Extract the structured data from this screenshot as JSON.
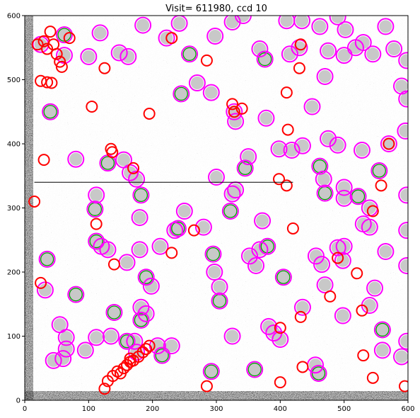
{
  "chart_data": {
    "type": "scatter",
    "title": "Visit= 611980, ccd 10",
    "xlabel": "",
    "ylabel": "",
    "xlim": [
      0,
      600
    ],
    "ylim": [
      0,
      600
    ],
    "x_ticks": [
      "0",
      "100",
      "200",
      "300",
      "400",
      "500",
      "600"
    ],
    "y_ticks": [
      "0",
      "100",
      "200",
      "300",
      "400",
      "500",
      "600"
    ],
    "grid": false,
    "background_image": "noisy grayscale CCD frame with dark edge bands",
    "colors": {
      "magenta": "#ff00ff",
      "green": "#00a000",
      "red": "#ff0000",
      "star_fill": "#c8c8c8"
    },
    "series": [
      {
        "color": "#ff00ff",
        "marker": "open circle",
        "points": [
          [
            25,
            555
          ],
          [
            62,
            570
          ],
          [
            62,
            538
          ],
          [
            100,
            536
          ],
          [
            118,
            573
          ],
          [
            148,
            542
          ],
          [
            162,
            536
          ],
          [
            185,
            585
          ],
          [
            222,
            565
          ],
          [
            242,
            588
          ],
          [
            258,
            540
          ],
          [
            270,
            495
          ],
          [
            245,
            478
          ],
          [
            292,
            480
          ],
          [
            298,
            568
          ],
          [
            325,
            590
          ],
          [
            342,
            600
          ],
          [
            368,
            548
          ],
          [
            376,
            532
          ],
          [
            410,
            592
          ],
          [
            434,
            592
          ],
          [
            415,
            540
          ],
          [
            430,
            550
          ],
          [
            462,
            583
          ],
          [
            475,
            545
          ],
          [
            470,
            505
          ],
          [
            490,
            598
          ],
          [
            502,
            578
          ],
          [
            500,
            538
          ],
          [
            518,
            550
          ],
          [
            530,
            558
          ],
          [
            545,
            540
          ],
          [
            565,
            583
          ],
          [
            578,
            548
          ],
          [
            598,
            530
          ],
          [
            590,
            490
          ],
          [
            598,
            470
          ],
          [
            596,
            420
          ],
          [
            570,
            400
          ],
          [
            528,
            390
          ],
          [
            450,
            458
          ],
          [
            475,
            408
          ],
          [
            490,
            398
          ],
          [
            435,
            397
          ],
          [
            398,
            392
          ],
          [
            418,
            390
          ],
          [
            378,
            440
          ],
          [
            328,
            450
          ],
          [
            330,
            435
          ],
          [
            350,
            380
          ],
          [
            345,
            362
          ],
          [
            300,
            348
          ],
          [
            325,
            322
          ],
          [
            330,
            328
          ],
          [
            322,
            295
          ],
          [
            372,
            280
          ],
          [
            250,
            295
          ],
          [
            240,
            268
          ],
          [
            280,
            270
          ],
          [
            180,
            285
          ],
          [
            155,
            375
          ],
          [
            165,
            355
          ],
          [
            175,
            345
          ],
          [
            182,
            320
          ],
          [
            130,
            370
          ],
          [
            112,
            320
          ],
          [
            110,
            298
          ],
          [
            80,
            376
          ],
          [
            40,
            450
          ],
          [
            180,
            235
          ],
          [
            160,
            215
          ],
          [
            120,
            240
          ],
          [
            112,
            248
          ],
          [
            130,
            235
          ],
          [
            35,
            220
          ],
          [
            32,
            172
          ],
          [
            80,
            165
          ],
          [
            140,
            137
          ],
          [
            190,
            192
          ],
          [
            198,
            178
          ],
          [
            212,
            240
          ],
          [
            235,
            265
          ],
          [
            295,
            228
          ],
          [
            297,
            200
          ],
          [
            305,
            177
          ],
          [
            305,
            155
          ],
          [
            352,
            225
          ],
          [
            362,
            210
          ],
          [
            368,
            235
          ],
          [
            380,
            240
          ],
          [
            405,
            192
          ],
          [
            456,
            225
          ],
          [
            465,
            212
          ],
          [
            470,
            180
          ],
          [
            490,
            238
          ],
          [
            500,
            240
          ],
          [
            498,
            218
          ],
          [
            530,
            275
          ],
          [
            540,
            270
          ],
          [
            540,
            300
          ],
          [
            522,
            318
          ],
          [
            500,
            332
          ],
          [
            500,
            315
          ],
          [
            462,
            365
          ],
          [
            468,
            345
          ],
          [
            470,
            323
          ],
          [
            555,
            358
          ],
          [
            565,
            232
          ],
          [
            548,
            175
          ],
          [
            540,
            148
          ],
          [
            498,
            132
          ],
          [
            560,
            110
          ],
          [
            560,
            78
          ],
          [
            598,
            210
          ],
          [
            598,
            265
          ],
          [
            598,
            320
          ],
          [
            598,
            92
          ],
          [
            590,
            68
          ],
          [
            435,
            145
          ],
          [
            455,
            55
          ],
          [
            460,
            42
          ],
          [
            382,
            115
          ],
          [
            390,
            105
          ],
          [
            400,
            95
          ],
          [
            360,
            48
          ],
          [
            325,
            100
          ],
          [
            292,
            45
          ],
          [
            230,
            85
          ],
          [
            208,
            85
          ],
          [
            215,
            70
          ],
          [
            175,
            75
          ],
          [
            160,
            92
          ],
          [
            172,
            92
          ],
          [
            182,
            145
          ],
          [
            190,
            135
          ],
          [
            182,
            125
          ],
          [
            135,
            100
          ],
          [
            112,
            98
          ],
          [
            95,
            78
          ],
          [
            65,
            80
          ],
          [
            55,
            118
          ],
          [
            65,
            98
          ],
          [
            60,
            65
          ],
          [
            45,
            62
          ]
        ]
      },
      {
        "color": "#00a000",
        "marker": "open circle (slightly smaller)",
        "points": [
          [
            40,
            450
          ],
          [
            130,
            370
          ],
          [
            110,
            298
          ],
          [
            35,
            220
          ],
          [
            112,
            248
          ],
          [
            182,
            320
          ],
          [
            240,
            268
          ],
          [
            322,
            295
          ],
          [
            345,
            362
          ],
          [
            376,
            532
          ],
          [
            462,
            365
          ],
          [
            405,
            192
          ],
          [
            305,
            155
          ],
          [
            360,
            48
          ],
          [
            460,
            42
          ],
          [
            292,
            45
          ],
          [
            215,
            70
          ],
          [
            182,
            125
          ],
          [
            160,
            92
          ],
          [
            62,
            570
          ],
          [
            258,
            540
          ],
          [
            470,
            323
          ],
          [
            555,
            358
          ],
          [
            522,
            318
          ],
          [
            245,
            478
          ],
          [
            80,
            165
          ],
          [
            140,
            137
          ],
          [
            190,
            192
          ],
          [
            295,
            228
          ],
          [
            380,
            240
          ],
          [
            560,
            110
          ]
        ]
      },
      {
        "color": "#ff0000",
        "marker": "open circle",
        "points": [
          [
            20,
            555
          ],
          [
            30,
            560
          ],
          [
            40,
            575
          ],
          [
            35,
            548
          ],
          [
            45,
            555
          ],
          [
            50,
            540
          ],
          [
            55,
            528
          ],
          [
            58,
            520
          ],
          [
            70,
            565
          ],
          [
            25,
            498
          ],
          [
            35,
            496
          ],
          [
            42,
            495
          ],
          [
            30,
            375
          ],
          [
            15,
            310
          ],
          [
            125,
            518
          ],
          [
            105,
            458
          ],
          [
            135,
            392
          ],
          [
            137,
            387
          ],
          [
            170,
            362
          ],
          [
            195,
            447
          ],
          [
            230,
            565
          ],
          [
            285,
            530
          ],
          [
            325,
            462
          ],
          [
            328,
            450
          ],
          [
            340,
            455
          ],
          [
            410,
            480
          ],
          [
            412,
            422
          ],
          [
            398,
            345
          ],
          [
            410,
            335
          ],
          [
            420,
            268
          ],
          [
            265,
            265
          ],
          [
            230,
            230
          ],
          [
            140,
            212
          ],
          [
            112,
            275
          ],
          [
            25,
            183
          ],
          [
            430,
            518
          ],
          [
            432,
            555
          ],
          [
            558,
            335
          ],
          [
            570,
            400
          ],
          [
            545,
            295
          ],
          [
            520,
            198
          ],
          [
            490,
            222
          ],
          [
            478,
            162
          ],
          [
            528,
            140
          ],
          [
            432,
            130
          ],
          [
            400,
            113
          ],
          [
            435,
            52
          ],
          [
            400,
            28
          ],
          [
            545,
            35
          ],
          [
            595,
            22
          ],
          [
            530,
            70
          ],
          [
            285,
            22
          ],
          [
            125,
            18
          ],
          [
            130,
            30
          ],
          [
            138,
            38
          ],
          [
            145,
            45
          ],
          [
            150,
            42
          ],
          [
            155,
            50
          ],
          [
            160,
            55
          ],
          [
            165,
            60
          ],
          [
            170,
            62
          ],
          [
            178,
            68
          ],
          [
            185,
            75
          ],
          [
            190,
            80
          ],
          [
            195,
            85
          ],
          [
            165,
            65
          ]
        ]
      }
    ],
    "extra_marks": {
      "horizontal_line_y": 340,
      "horizontal_line_x_range": [
        15,
        420
      ]
    }
  }
}
